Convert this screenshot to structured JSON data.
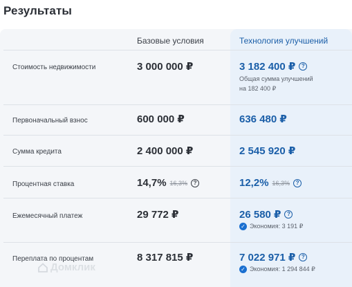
{
  "title": "Результаты",
  "columns": {
    "base": "Базовые условия",
    "tech": "Технология улучшений"
  },
  "rows": {
    "price": {
      "label": "Стоимость недвижимости",
      "base": "3 000 000 ₽",
      "tech": "3 182 400 ₽",
      "note_line1": "Общая сумма улучшений",
      "note_line2": "на 182 400 ₽"
    },
    "downpayment": {
      "label": "Первоначальный взнос",
      "base": "600 000 ₽",
      "tech": "636 480 ₽"
    },
    "loan": {
      "label": "Сумма кредита",
      "base": "2 400 000 ₽",
      "tech": "2 545 920 ₽"
    },
    "rate": {
      "label": "Процентная ставка",
      "base": "14,7%",
      "base_old": "16,3%",
      "tech": "12,2%",
      "tech_old": "16,3%"
    },
    "monthly": {
      "label": "Ежемесячный платеж",
      "base": "29 772 ₽",
      "tech": "26 580 ₽",
      "savings": "Экономия: 3 191 ₽"
    },
    "overpay": {
      "label": "Переплата по процентам",
      "base": "8 317 815 ₽",
      "tech": "7 022 971 ₽",
      "savings": "Экономия: 1 294 844 ₽"
    }
  },
  "watermark": "Домклик",
  "icons": {
    "question": "?",
    "check": "✓"
  },
  "colors": {
    "accent": "#1a5ea8",
    "tech_bg": "#e9f1fa",
    "panel_bg": "#f4f6f9"
  }
}
